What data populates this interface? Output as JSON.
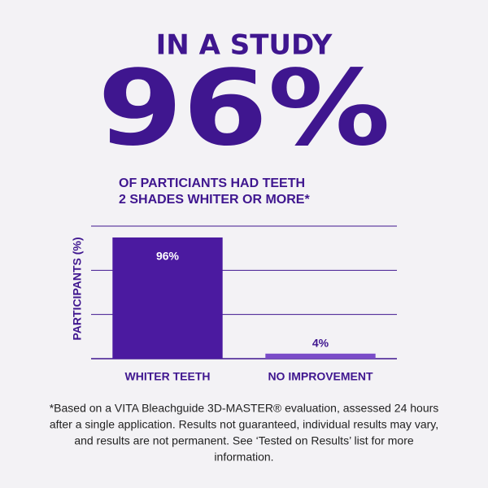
{
  "headline": "IN A STUDY",
  "big_stat": "96%",
  "subtitle": [
    "OF PARTICIANTS HAD TEETH",
    "2 SHADES WHITER OR MORE*"
  ],
  "chart_data": {
    "type": "bar",
    "y_label": "PARTICIPANTS (%)",
    "categories": [
      "WHITER TEETH",
      "NO IMPROVEMENT"
    ],
    "values": [
      96,
      4
    ],
    "value_labels": [
      "96%",
      "4%"
    ],
    "colors": [
      "#4b1aa0",
      "#7a4cc8"
    ],
    "ylim": [
      0,
      105
    ],
    "yticks": [
      0,
      35,
      70,
      105
    ],
    "grid": true
  },
  "footnote": [
    "*Based on a VITA Bleachguide 3D-MASTER® evaluation, assessed 24 hours",
    "after a single application. Results not guaranteed, individual results may vary,",
    "and results are not permanent. See ‘Tested on Results’ list for more",
    "information."
  ]
}
